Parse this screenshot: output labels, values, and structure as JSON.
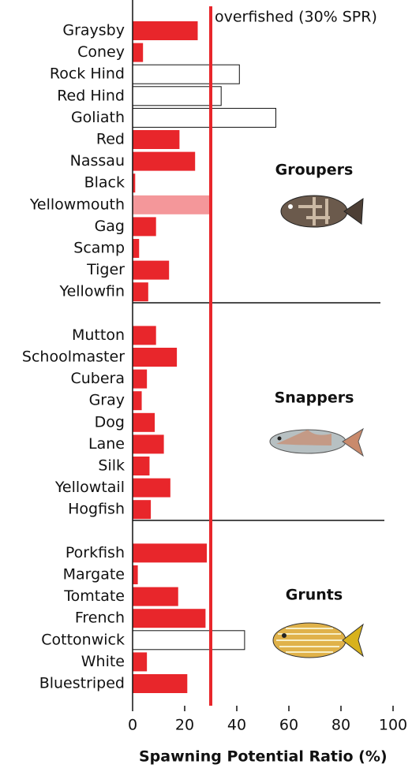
{
  "chart_data": {
    "type": "bar",
    "orientation": "horizontal",
    "x_label": "Spawning Potential Ratio (%)",
    "xlim": [
      0,
      100
    ],
    "xticks": [
      0,
      20,
      40,
      60,
      80,
      100
    ],
    "threshold": {
      "value": 30,
      "label": "overfished (30% SPR)",
      "color": "#e8262b"
    },
    "groups": [
      {
        "name": "Groupers",
        "categories": [
          "Graysby",
          "Coney",
          "Rock Hind",
          "Red Hind",
          "Goliath",
          "Red",
          "Nassau",
          "Black",
          "Yellowmouth",
          "Gag",
          "Scamp",
          "Tiger",
          "Yellowfin"
        ],
        "values": [
          25,
          4,
          41,
          34,
          55,
          18,
          24,
          1,
          30,
          9,
          2.5,
          14,
          6
        ],
        "colors": [
          "#e8262b",
          "#e8262b",
          "#ffffff",
          "#ffffff",
          "#ffffff",
          "#e8262b",
          "#e8262b",
          "#e8262b",
          "#f4979a",
          "#e8262b",
          "#e8262b",
          "#e8262b",
          "#e8262b"
        ]
      },
      {
        "name": "Snappers",
        "categories": [
          "Mutton",
          "Schoolmaster",
          "Cubera",
          "Gray",
          "Dog",
          "Lane",
          "Silk",
          "Yellowtail",
          "Hogfish"
        ],
        "values": [
          9,
          17,
          5.5,
          3.5,
          8.5,
          12,
          6.5,
          14.5,
          7
        ],
        "colors": [
          "#e8262b",
          "#e8262b",
          "#e8262b",
          "#e8262b",
          "#e8262b",
          "#e8262b",
          "#e8262b",
          "#e8262b",
          "#e8262b"
        ]
      },
      {
        "name": "Grunts",
        "categories": [
          "Porkfish",
          "Margate",
          "Tomtate",
          "French",
          "Cottonwick",
          "White",
          "Bluestriped"
        ],
        "values": [
          28.5,
          2,
          17.5,
          28,
          43,
          5.5,
          21
        ],
        "colors": [
          "#e8262b",
          "#e8262b",
          "#e8262b",
          "#e8262b",
          "#ffffff",
          "#e8262b",
          "#e8262b"
        ]
      }
    ]
  }
}
